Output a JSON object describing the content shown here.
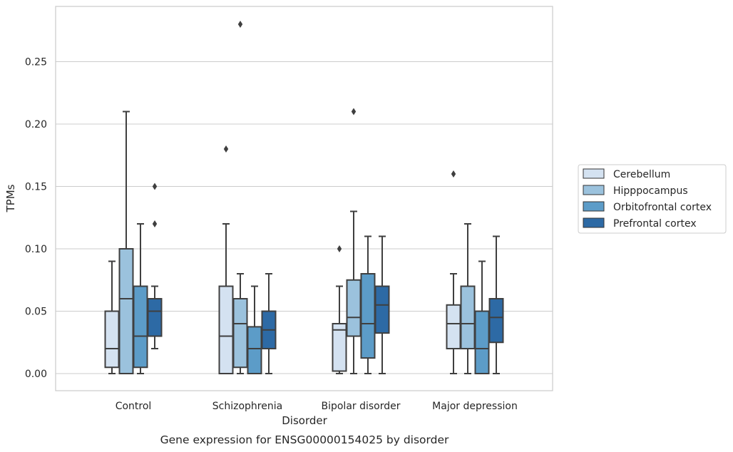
{
  "chart_data": {
    "type": "box",
    "caption": "Gene expression for ENSG00000154025 by disorder",
    "xlabel": "Disorder",
    "ylabel": "TPMs",
    "ylim": [
      -0.014,
      0.29
    ],
    "yticks": [
      "0.00",
      "0.05",
      "0.10",
      "0.15",
      "0.20",
      "0.25"
    ],
    "grid": "horizontal",
    "legend_position": "right",
    "categories": [
      "Control",
      "Schizophrenia",
      "Bipolar disorder",
      "Major depression"
    ],
    "series": [
      {
        "name": "Cerebellum",
        "color": "#d4e2f1",
        "boxes": [
          {
            "min": 0.0,
            "q1": 0.005,
            "median": 0.02,
            "q3": 0.05,
            "max": 0.09,
            "outliers": []
          },
          {
            "min": 0.0,
            "q1": 0.0,
            "median": 0.03,
            "q3": 0.07,
            "max": 0.12,
            "outliers": [
              0.18
            ]
          },
          {
            "min": 0.0,
            "q1": 0.002,
            "median": 0.035,
            "q3": 0.04,
            "max": 0.07,
            "outliers": [
              0.1
            ]
          },
          {
            "min": 0.0,
            "q1": 0.02,
            "median": 0.04,
            "q3": 0.055,
            "max": 0.08,
            "outliers": [
              0.16
            ]
          }
        ]
      },
      {
        "name": "Hipppocampus",
        "color": "#9bc2dd",
        "boxes": [
          {
            "min": 0.0,
            "q1": 0.0,
            "median": 0.06,
            "q3": 0.1,
            "max": 0.21,
            "outliers": []
          },
          {
            "min": 0.0,
            "q1": 0.005,
            "median": 0.04,
            "q3": 0.06,
            "max": 0.08,
            "outliers": [
              0.28
            ]
          },
          {
            "min": 0.0,
            "q1": 0.03,
            "median": 0.045,
            "q3": 0.075,
            "max": 0.13,
            "outliers": [
              0.21
            ]
          },
          {
            "min": 0.0,
            "q1": 0.02,
            "median": 0.04,
            "q3": 0.07,
            "max": 0.12,
            "outliers": []
          }
        ]
      },
      {
        "name": "Orbitofrontal cortex",
        "color": "#5c9cc8",
        "boxes": [
          {
            "min": 0.0,
            "q1": 0.005,
            "median": 0.03,
            "q3": 0.07,
            "max": 0.12,
            "outliers": []
          },
          {
            "min": 0.0,
            "q1": 0.0,
            "median": 0.02,
            "q3": 0.0375,
            "max": 0.07,
            "outliers": []
          },
          {
            "min": 0.0,
            "q1": 0.0125,
            "median": 0.04,
            "q3": 0.08,
            "max": 0.11,
            "outliers": []
          },
          {
            "min": 0.0,
            "q1": 0.0,
            "median": 0.02,
            "q3": 0.05,
            "max": 0.09,
            "outliers": []
          }
        ]
      },
      {
        "name": "Prefrontal cortex",
        "color": "#2d6aa5",
        "boxes": [
          {
            "min": 0.02,
            "q1": 0.03,
            "median": 0.05,
            "q3": 0.06,
            "max": 0.07,
            "outliers": [
              0.12,
              0.15
            ]
          },
          {
            "min": 0.0,
            "q1": 0.02,
            "median": 0.035,
            "q3": 0.05,
            "max": 0.08,
            "outliers": []
          },
          {
            "min": 0.0,
            "q1": 0.0325,
            "median": 0.055,
            "q3": 0.07,
            "max": 0.11,
            "outliers": []
          },
          {
            "min": 0.0,
            "q1": 0.025,
            "median": 0.045,
            "q3": 0.06,
            "max": 0.11,
            "outliers": []
          }
        ]
      }
    ]
  }
}
